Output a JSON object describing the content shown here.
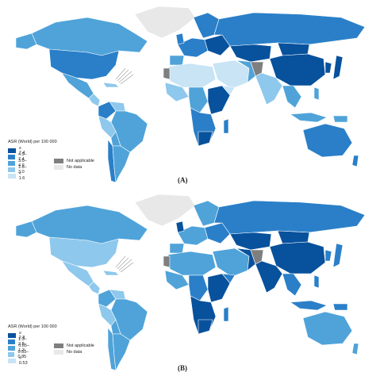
{
  "colors": {
    "ocean": "#ffffff",
    "border": "#ffffff",
    "c1": "#08519c",
    "c2": "#2a7fc8",
    "c3": "#4fa3d9",
    "c4": "#8ec8ec",
    "c5": "#c8e4f5",
    "not_applicable": "#7f7f7f",
    "no_data": "#e8e8e8"
  },
  "panels": [
    {
      "label": "(A)",
      "legend_title": "ASR (World) per 100 000",
      "legend_items": [
        "≥ 7.4",
        "4.9–7.4",
        "3.0–4.9",
        "1.6–3.0",
        "< 1.6"
      ],
      "not_applicable": "Not applicable",
      "no_data": "No data"
    },
    {
      "label": "(B)",
      "legend_title": "ASR (World) per 100 000",
      "legend_items": [
        "≥ 2.8",
        "1.3–2.8",
        "0.85–1.3",
        "0.53–0.85",
        "< 0.53"
      ],
      "not_applicable": "Not applicable",
      "no_data": "No data"
    }
  ]
}
